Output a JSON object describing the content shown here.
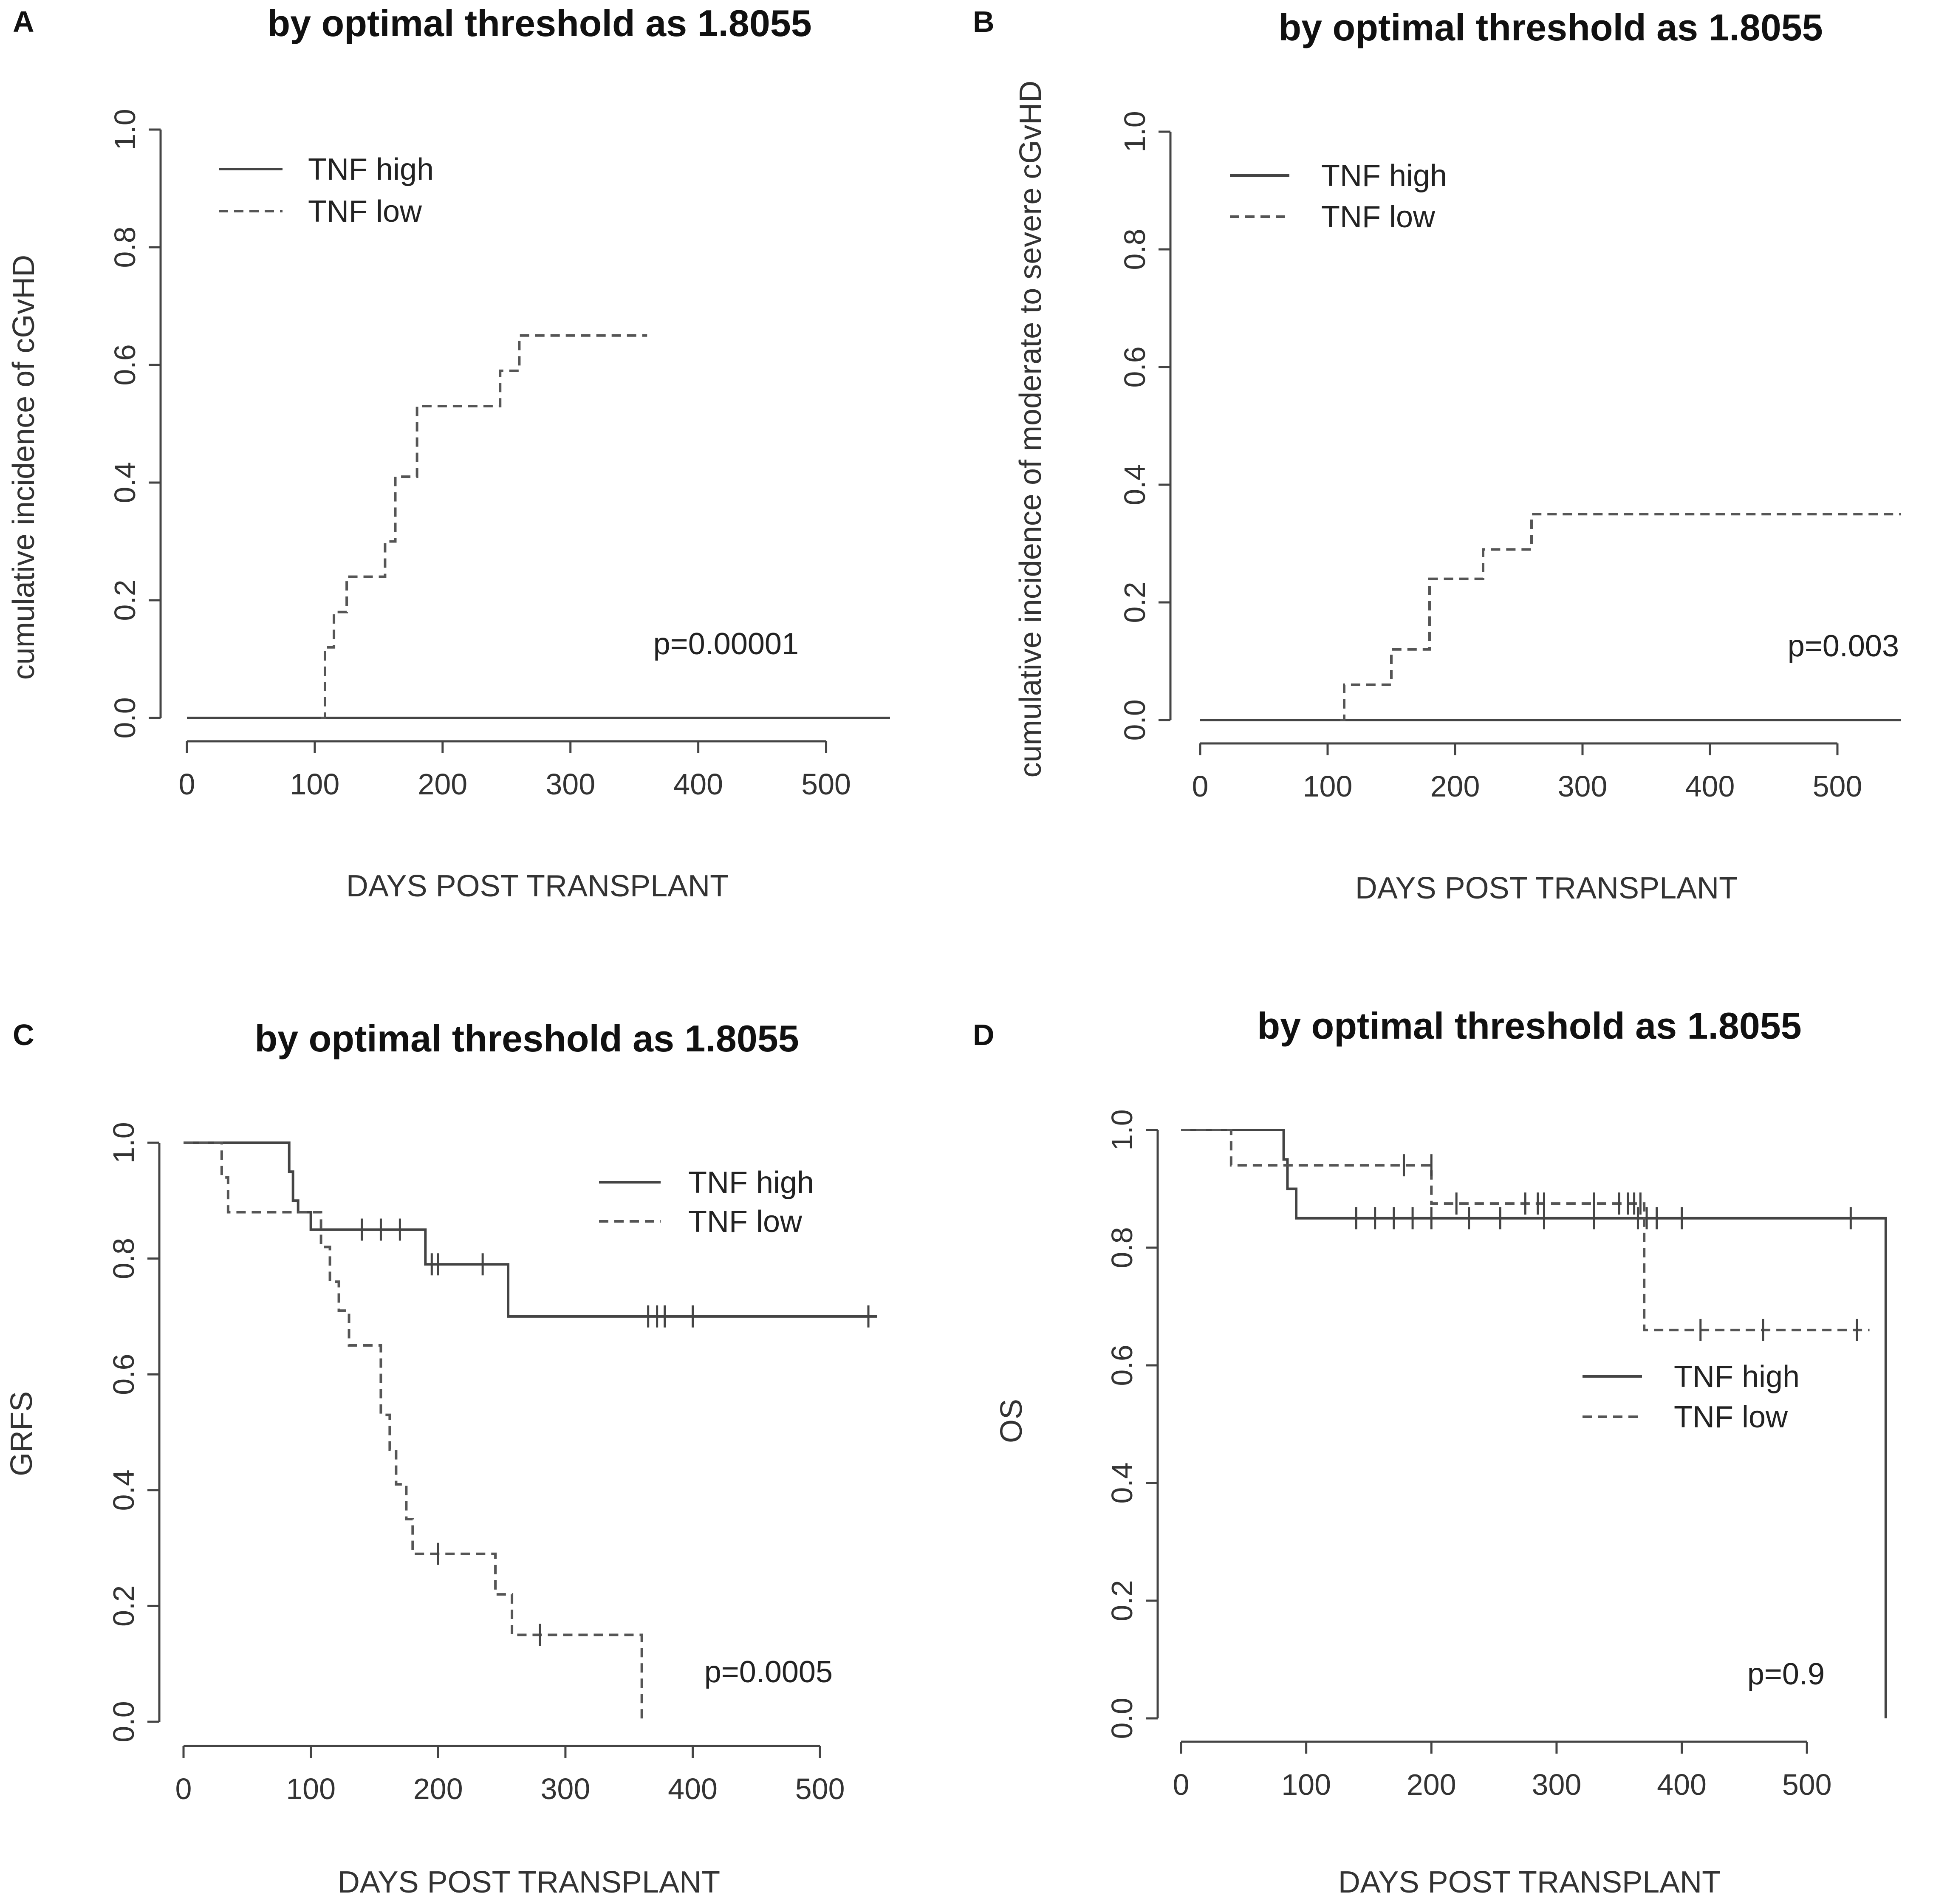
{
  "chart_data": [
    {
      "panel": "A",
      "type": "line",
      "title": "by optimal threshold as 1.8055",
      "xlabel": "DAYS POST TRANSPLANT",
      "ylabel": "cumulative incidence of cGvHD",
      "xlim": [
        0,
        550
      ],
      "ylim": [
        0,
        1
      ],
      "xticks": [
        "0",
        "100",
        "200",
        "300",
        "400",
        "500"
      ],
      "yticks": [
        "0.0",
        "0.2",
        "0.4",
        "0.6",
        "0.8",
        "1.0"
      ],
      "pvalue": "p=0.00001",
      "legend": [
        "TNF high",
        "TNF low"
      ],
      "series": [
        {
          "name": "TNF high",
          "style": "solid",
          "x": [
            0,
            550
          ],
          "y": [
            0,
            0
          ],
          "censor": []
        },
        {
          "name": "TNF low",
          "style": "dashed",
          "x": [
            105,
            108,
            115,
            125,
            155,
            163,
            180,
            245,
            260,
            360
          ],
          "y": [
            0,
            0.12,
            0.18,
            0.24,
            0.3,
            0.41,
            0.53,
            0.59,
            0.65,
            0.65
          ],
          "censor": []
        }
      ]
    },
    {
      "panel": "B",
      "type": "line",
      "title": "by optimal threshold as 1.8055",
      "xlabel": "DAYS POST TRANSPLANT",
      "ylabel": "cumulative incidence of moderate to severe cGvHD",
      "xlim": [
        0,
        550
      ],
      "ylim": [
        0,
        1
      ],
      "xticks": [
        "0",
        "100",
        "200",
        "300",
        "400",
        "500"
      ],
      "yticks": [
        "0.0",
        "0.2",
        "0.4",
        "0.6",
        "0.8",
        "1.0"
      ],
      "pvalue": "p=0.003",
      "legend": [
        "TNF high",
        "TNF low"
      ],
      "series": [
        {
          "name": "TNF high",
          "style": "solid",
          "x": [
            0,
            550
          ],
          "y": [
            0,
            0
          ],
          "censor": []
        },
        {
          "name": "TNF low",
          "style": "dashed",
          "x": [
            110,
            113,
            150,
            180,
            222,
            260,
            550
          ],
          "y": [
            0,
            0.06,
            0.12,
            0.24,
            0.29,
            0.35,
            0.35
          ],
          "censor": []
        }
      ]
    },
    {
      "panel": "C",
      "type": "line",
      "title": "by optimal threshold as 1.8055",
      "xlabel": "DAYS POST TRANSPLANT",
      "ylabel": "GRFS",
      "xlim": [
        0,
        550
      ],
      "ylim": [
        0,
        1
      ],
      "xticks": [
        "0",
        "100",
        "200",
        "300",
        "400",
        "500"
      ],
      "yticks": [
        "0.0",
        "0.2",
        "0.4",
        "0.6",
        "0.8",
        "1.0"
      ],
      "pvalue": "p=0.0005",
      "legend": [
        "TNF high",
        "TNF low"
      ],
      "series": [
        {
          "name": "TNF high",
          "style": "solid",
          "x": [
            0,
            83,
            86,
            90,
            100,
            190,
            255,
            545
          ],
          "y": [
            1.0,
            0.95,
            0.9,
            0.88,
            0.85,
            0.79,
            0.7,
            0.7
          ],
          "censor": [
            [
              140,
              0.85
            ],
            [
              155,
              0.85
            ],
            [
              170,
              0.85
            ],
            [
              195,
              0.79
            ],
            [
              200,
              0.79
            ],
            [
              235,
              0.79
            ],
            [
              365,
              0.7
            ],
            [
              372,
              0.7
            ],
            [
              378,
              0.7
            ],
            [
              400,
              0.7
            ],
            [
              538,
              0.7
            ]
          ]
        },
        {
          "name": "TNF low",
          "style": "dashed",
          "x": [
            0,
            30,
            35,
            42,
            108,
            115,
            122,
            130,
            155,
            162,
            167,
            175,
            180,
            245,
            258,
            360
          ],
          "y": [
            1.0,
            0.94,
            0.88,
            0.88,
            0.82,
            0.76,
            0.71,
            0.65,
            0.53,
            0.47,
            0.41,
            0.35,
            0.29,
            0.22,
            0.15,
            0.0
          ],
          "censor": [
            [
              200,
              0.29
            ],
            [
              280,
              0.15
            ]
          ]
        }
      ]
    },
    {
      "panel": "D",
      "type": "line",
      "title": "by optimal threshold as 1.8055",
      "xlabel": "DAYS POST TRANSPLANT",
      "ylabel": "OS",
      "xlim": [
        0,
        560
      ],
      "ylim": [
        0,
        1
      ],
      "xticks": [
        "0",
        "100",
        "200",
        "300",
        "400",
        "500"
      ],
      "yticks": [
        "0.0",
        "0.2",
        "0.4",
        "0.6",
        "0.8",
        "1.0"
      ],
      "pvalue": "p=0.9",
      "legend": [
        "TNF high",
        "TNF low"
      ],
      "series": [
        {
          "name": "TNF high",
          "style": "solid",
          "x": [
            0,
            82,
            85,
            92,
            563,
            563
          ],
          "y": [
            1.0,
            0.95,
            0.9,
            0.85,
            0.85,
            0.0
          ],
          "censor": [
            [
              140,
              0.85
            ],
            [
              155,
              0.85
            ],
            [
              170,
              0.85
            ],
            [
              185,
              0.85
            ],
            [
              200,
              0.85
            ],
            [
              230,
              0.85
            ],
            [
              255,
              0.85
            ],
            [
              290,
              0.85
            ],
            [
              330,
              0.85
            ],
            [
              365,
              0.85
            ],
            [
              372,
              0.85
            ],
            [
              380,
              0.85
            ],
            [
              400,
              0.85
            ],
            [
              535,
              0.85
            ]
          ]
        },
        {
          "name": "TNF low",
          "style": "dashed",
          "x": [
            0,
            40,
            200,
            370,
            550
          ],
          "y": [
            1.0,
            0.94,
            0.875,
            0.66,
            0.66
          ],
          "censor": [
            [
              178,
              0.94
            ],
            [
              200,
              0.94
            ],
            [
              220,
              0.875
            ],
            [
              275,
              0.875
            ],
            [
              285,
              0.875
            ],
            [
              290,
              0.875
            ],
            [
              330,
              0.875
            ],
            [
              350,
              0.875
            ],
            [
              357,
              0.875
            ],
            [
              362,
              0.875
            ],
            [
              367,
              0.875
            ],
            [
              415,
              0.66
            ],
            [
              465,
              0.66
            ],
            [
              540,
              0.66
            ]
          ]
        }
      ]
    }
  ]
}
